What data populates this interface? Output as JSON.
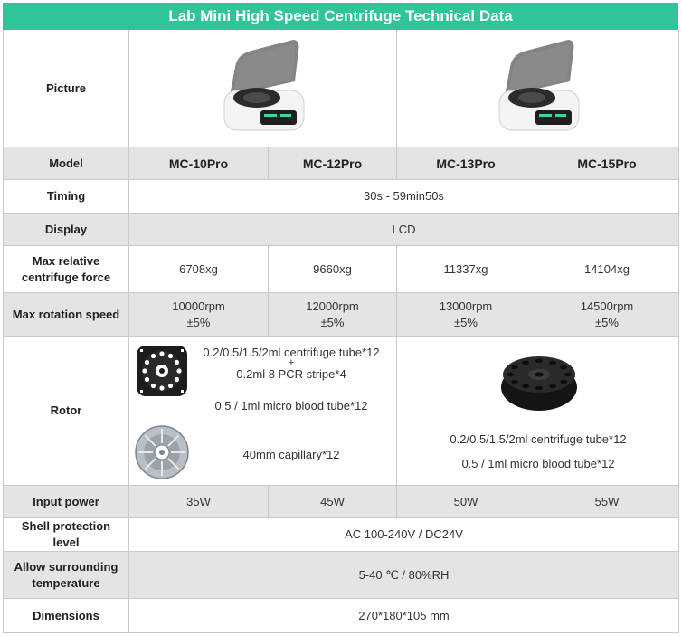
{
  "title": "Lab Mini High Speed Centrifuge Technical Data",
  "colors": {
    "accent": "#2fc49a",
    "row_gray": "#e4e4e4",
    "border": "#c9c9c9"
  },
  "labels": {
    "picture": "Picture",
    "model": "Model",
    "timing": "Timing",
    "display": "Display",
    "max_rcf": "Max relative centrifuge force",
    "max_speed": "Max rotation speed",
    "rotor": "Rotor",
    "input_power": "Input power",
    "shell": "Shell protection level",
    "temperature": "Allow surrounding temperature",
    "dimensions": "Dimensions"
  },
  "models": [
    "MC-10Pro",
    "MC-12Pro",
    "MC-13Pro",
    "MC-15Pro"
  ],
  "timing": "30s - 59min50s",
  "display": "LCD",
  "max_rcf": [
    "6708xg",
    "9660xg",
    "11337xg",
    "14104xg"
  ],
  "max_speed": [
    {
      "rpm": "10000rpm",
      "tol": "±5%"
    },
    {
      "rpm": "12000rpm",
      "tol": "±5%"
    },
    {
      "rpm": "13000rpm",
      "tol": "±5%"
    },
    {
      "rpm": "14500rpm",
      "tol": "±5%"
    }
  ],
  "rotor_left": {
    "line1": "0.2/0.5/1.5/2ml centrifuge tube*12",
    "plus": "+",
    "line2": "0.2ml 8 PCR stripe*4",
    "line3": "0.5 / 1ml micro blood tube*12",
    "line4": "40mm capillary*12"
  },
  "rotor_right": {
    "line1": "0.2/0.5/1.5/2ml centrifuge tube*12",
    "line2": "0.5 / 1ml micro blood tube*12"
  },
  "input_power": [
    "35W",
    "45W",
    "50W",
    "55W"
  ],
  "shell": "AC 100-240V / DC24V",
  "temperature": "5-40 ℃ / 80%RH",
  "dimensions": "270*180*105 mm"
}
